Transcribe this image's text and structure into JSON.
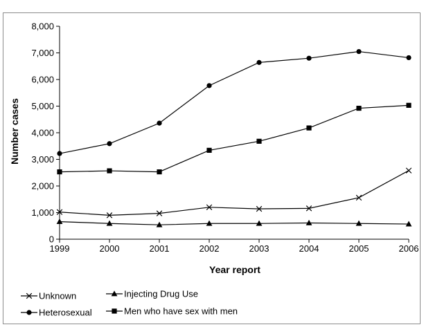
{
  "chart_data": {
    "type": "line",
    "title": "",
    "xlabel": "Year report",
    "ylabel": "Number cases",
    "categories": [
      "1999",
      "2000",
      "2001",
      "2002",
      "2003",
      "2004",
      "2005",
      "2006"
    ],
    "ylim": [
      0,
      8000
    ],
    "yticks": [
      "0",
      "1,000",
      "2,000",
      "3,000",
      "4,000",
      "5,000",
      "6,000",
      "7,000",
      "8,000"
    ],
    "ytick_values": [
      0,
      1000,
      2000,
      3000,
      4000,
      5000,
      6000,
      7000,
      8000
    ],
    "grid": false,
    "legend_position": "bottom",
    "series": [
      {
        "name": "Unknown",
        "marker": "x",
        "values": [
          1020,
          900,
          970,
          1200,
          1140,
          1160,
          1560,
          2580
        ]
      },
      {
        "name": "Injecting Drug Use",
        "marker": "triangle",
        "values": [
          660,
          590,
          540,
          590,
          590,
          610,
          590,
          570
        ]
      },
      {
        "name": "Heterosexual",
        "marker": "circle",
        "values": [
          3220,
          3590,
          4360,
          5770,
          6640,
          6800,
          7050,
          6820
        ]
      },
      {
        "name": "Men who have sex with men",
        "marker": "square",
        "values": [
          2530,
          2570,
          2530,
          3340,
          3680,
          4180,
          4920,
          5030
        ]
      }
    ]
  }
}
